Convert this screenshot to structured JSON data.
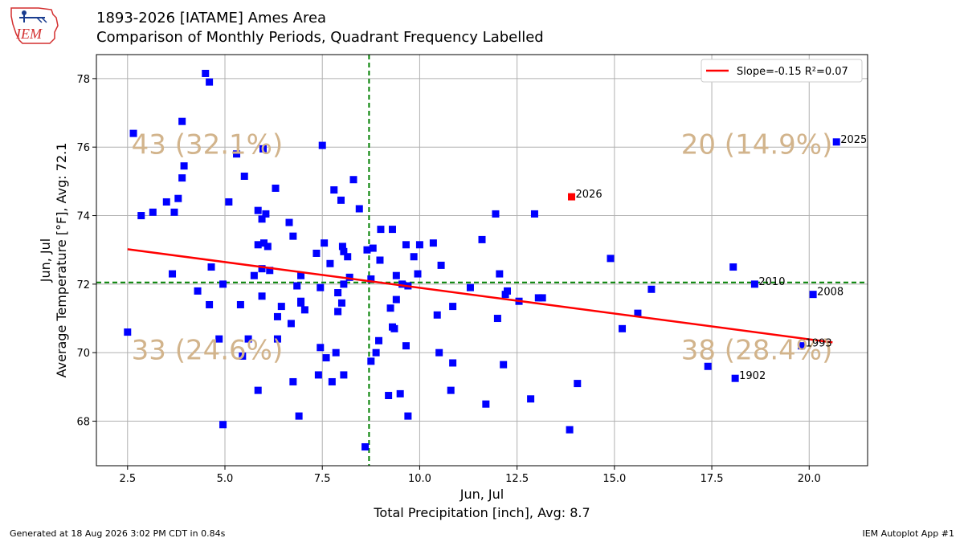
{
  "header": {
    "title_line1": "1893-2026 [IATAME] Ames Area",
    "title_line2": "Comparison of Monthly Periods, Quadrant Frequency Labelled"
  },
  "logo": {
    "text": "IEM",
    "color": "#d32f2f"
  },
  "footer": {
    "left": "Generated at 18 Aug 2026 3:02 PM CDT in 0.84s",
    "right": "IEM Autoplot App #1"
  },
  "chart_data": {
    "type": "scatter",
    "xlabel_line1": "Jun, Jul",
    "xlabel_line2": "Total Precipitation [inch], Avg: 8.7",
    "ylabel_line1": "Jun, Jul",
    "ylabel_line2": "Average Temperature [°F], Avg: 72.1",
    "xlim": [
      1.7,
      21.5
    ],
    "ylim": [
      66.7,
      78.7
    ],
    "x_ticks": [
      2.5,
      5.0,
      7.5,
      10.0,
      12.5,
      15.0,
      17.5,
      20.0
    ],
    "x_tick_labels": [
      "2.5",
      "5.0",
      "7.5",
      "10.0",
      "12.5",
      "15.0",
      "17.5",
      "20.0"
    ],
    "y_ticks": [
      68,
      70,
      72,
      74,
      76,
      78
    ],
    "y_tick_labels": [
      "68",
      "70",
      "72",
      "74",
      "76",
      "78"
    ],
    "grid": true,
    "avg_x": 8.7,
    "avg_y": 72.05,
    "point_color": "#0000ff",
    "highlight_color": "#ff0000",
    "avg_line_color": "#008000",
    "regression": {
      "x": [
        2.5,
        20.6
      ],
      "y": [
        73.02,
        70.3
      ],
      "color": "#ff0000"
    },
    "legend": {
      "label": "Slope=-0.15 R²=0.07",
      "position": "top-right"
    },
    "quadrant_labels": [
      {
        "text": "43 (32.1%)",
        "x": 2.6,
        "y": 75.8,
        "align": "start"
      },
      {
        "text": "20 (14.9%)",
        "x": 20.6,
        "y": 75.8,
        "align": "end"
      },
      {
        "text": "33 (24.6%)",
        "x": 2.6,
        "y": 69.8,
        "align": "start"
      },
      {
        "text": "38 (28.4%)",
        "x": 20.6,
        "y": 69.8,
        "align": "end"
      }
    ],
    "annotations": [
      {
        "text": "2026",
        "x": 13.9,
        "y": 74.55
      },
      {
        "text": "2025",
        "x": 20.7,
        "y": 76.15
      },
      {
        "text": "2010",
        "x": 18.6,
        "y": 72.0
      },
      {
        "text": "2008",
        "x": 20.1,
        "y": 71.7
      },
      {
        "text": "1993",
        "x": 19.8,
        "y": 70.2
      },
      {
        "text": "1902",
        "x": 18.1,
        "y": 69.25
      }
    ],
    "highlight": {
      "x": 13.9,
      "y": 74.55
    },
    "points": [
      [
        2.5,
        70.6
      ],
      [
        2.65,
        76.4
      ],
      [
        2.85,
        74.0
      ],
      [
        3.15,
        74.1
      ],
      [
        3.5,
        74.4
      ],
      [
        3.65,
        72.3
      ],
      [
        3.7,
        74.1
      ],
      [
        3.8,
        74.5
      ],
      [
        3.9,
        76.75
      ],
      [
        3.9,
        75.1
      ],
      [
        3.95,
        75.45
      ],
      [
        4.3,
        71.8
      ],
      [
        4.5,
        78.15
      ],
      [
        4.6,
        77.9
      ],
      [
        4.6,
        71.4
      ],
      [
        4.65,
        72.5
      ],
      [
        4.85,
        70.4
      ],
      [
        4.95,
        72.0
      ],
      [
        4.95,
        67.9
      ],
      [
        5.1,
        74.4
      ],
      [
        5.3,
        75.8
      ],
      [
        5.4,
        71.4
      ],
      [
        5.45,
        69.9
      ],
      [
        5.5,
        75.15
      ],
      [
        5.6,
        70.4
      ],
      [
        5.75,
        72.25
      ],
      [
        5.85,
        74.15
      ],
      [
        5.85,
        73.15
      ],
      [
        5.85,
        68.9
      ],
      [
        5.95,
        72.45
      ],
      [
        5.95,
        71.65
      ],
      [
        5.95,
        73.9
      ],
      [
        5.98,
        75.95
      ],
      [
        6.0,
        73.2
      ],
      [
        6.05,
        74.05
      ],
      [
        6.1,
        73.1
      ],
      [
        6.15,
        72.4
      ],
      [
        6.3,
        74.8
      ],
      [
        6.35,
        71.05
      ],
      [
        6.35,
        70.4
      ],
      [
        6.45,
        71.35
      ],
      [
        6.65,
        73.8
      ],
      [
        6.7,
        70.85
      ],
      [
        6.75,
        73.4
      ],
      [
        6.75,
        69.15
      ],
      [
        6.85,
        71.95
      ],
      [
        6.9,
        68.15
      ],
      [
        6.95,
        72.25
      ],
      [
        6.95,
        71.5
      ],
      [
        6.95,
        71.45
      ],
      [
        7.05,
        71.25
      ],
      [
        7.35,
        72.9
      ],
      [
        7.4,
        69.35
      ],
      [
        7.45,
        70.15
      ],
      [
        7.45,
        71.9
      ],
      [
        7.5,
        76.05
      ],
      [
        7.55,
        73.2
      ],
      [
        7.6,
        69.85
      ],
      [
        7.7,
        72.6
      ],
      [
        7.75,
        69.15
      ],
      [
        7.8,
        74.75
      ],
      [
        7.85,
        70.0
      ],
      [
        7.9,
        71.2
      ],
      [
        7.9,
        71.75
      ],
      [
        7.98,
        74.45
      ],
      [
        8.0,
        71.45
      ],
      [
        8.02,
        73.1
      ],
      [
        8.05,
        72.95
      ],
      [
        8.05,
        72.0
      ],
      [
        8.05,
        69.35
      ],
      [
        8.15,
        72.8
      ],
      [
        8.2,
        72.2
      ],
      [
        8.3,
        75.05
      ],
      [
        8.45,
        74.2
      ],
      [
        8.6,
        67.25
      ],
      [
        8.65,
        73.0
      ],
      [
        8.75,
        69.75
      ],
      [
        8.75,
        72.15
      ],
      [
        8.8,
        73.05
      ],
      [
        8.88,
        70.0
      ],
      [
        8.95,
        70.35
      ],
      [
        8.98,
        72.7
      ],
      [
        9.0,
        73.6
      ],
      [
        9.2,
        68.75
      ],
      [
        9.25,
        71.3
      ],
      [
        9.3,
        73.6
      ],
      [
        9.3,
        70.75
      ],
      [
        9.35,
        70.7
      ],
      [
        9.4,
        71.55
      ],
      [
        9.4,
        72.25
      ],
      [
        9.5,
        68.8
      ],
      [
        9.55,
        72.0
      ],
      [
        9.65,
        73.15
      ],
      [
        9.65,
        70.2
      ],
      [
        9.7,
        71.95
      ],
      [
        9.7,
        68.15
      ],
      [
        9.85,
        72.8
      ],
      [
        9.95,
        72.3
      ],
      [
        10.0,
        73.15
      ],
      [
        10.35,
        73.2
      ],
      [
        10.45,
        71.1
      ],
      [
        10.5,
        70.0
      ],
      [
        10.55,
        72.55
      ],
      [
        10.8,
        68.9
      ],
      [
        10.85,
        69.7
      ],
      [
        10.85,
        71.35
      ],
      [
        11.3,
        71.9
      ],
      [
        11.6,
        73.3
      ],
      [
        11.7,
        68.5
      ],
      [
        11.95,
        74.05
      ],
      [
        12.0,
        71.0
      ],
      [
        12.05,
        72.3
      ],
      [
        12.15,
        69.65
      ],
      [
        12.2,
        71.7
      ],
      [
        12.25,
        71.8
      ],
      [
        12.55,
        71.5
      ],
      [
        12.85,
        68.65
      ],
      [
        12.95,
        74.05
      ],
      [
        13.05,
        71.6
      ],
      [
        13.15,
        71.6
      ],
      [
        13.85,
        67.75
      ],
      [
        14.05,
        69.1
      ],
      [
        14.9,
        72.75
      ],
      [
        15.2,
        70.7
      ],
      [
        15.6,
        71.15
      ],
      [
        15.95,
        71.85
      ],
      [
        17.4,
        69.6
      ],
      [
        18.05,
        72.5
      ],
      [
        18.1,
        69.25
      ],
      [
        18.6,
        72.0
      ],
      [
        19.8,
        70.2
      ],
      [
        20.1,
        71.7
      ],
      [
        20.7,
        76.15
      ]
    ]
  }
}
